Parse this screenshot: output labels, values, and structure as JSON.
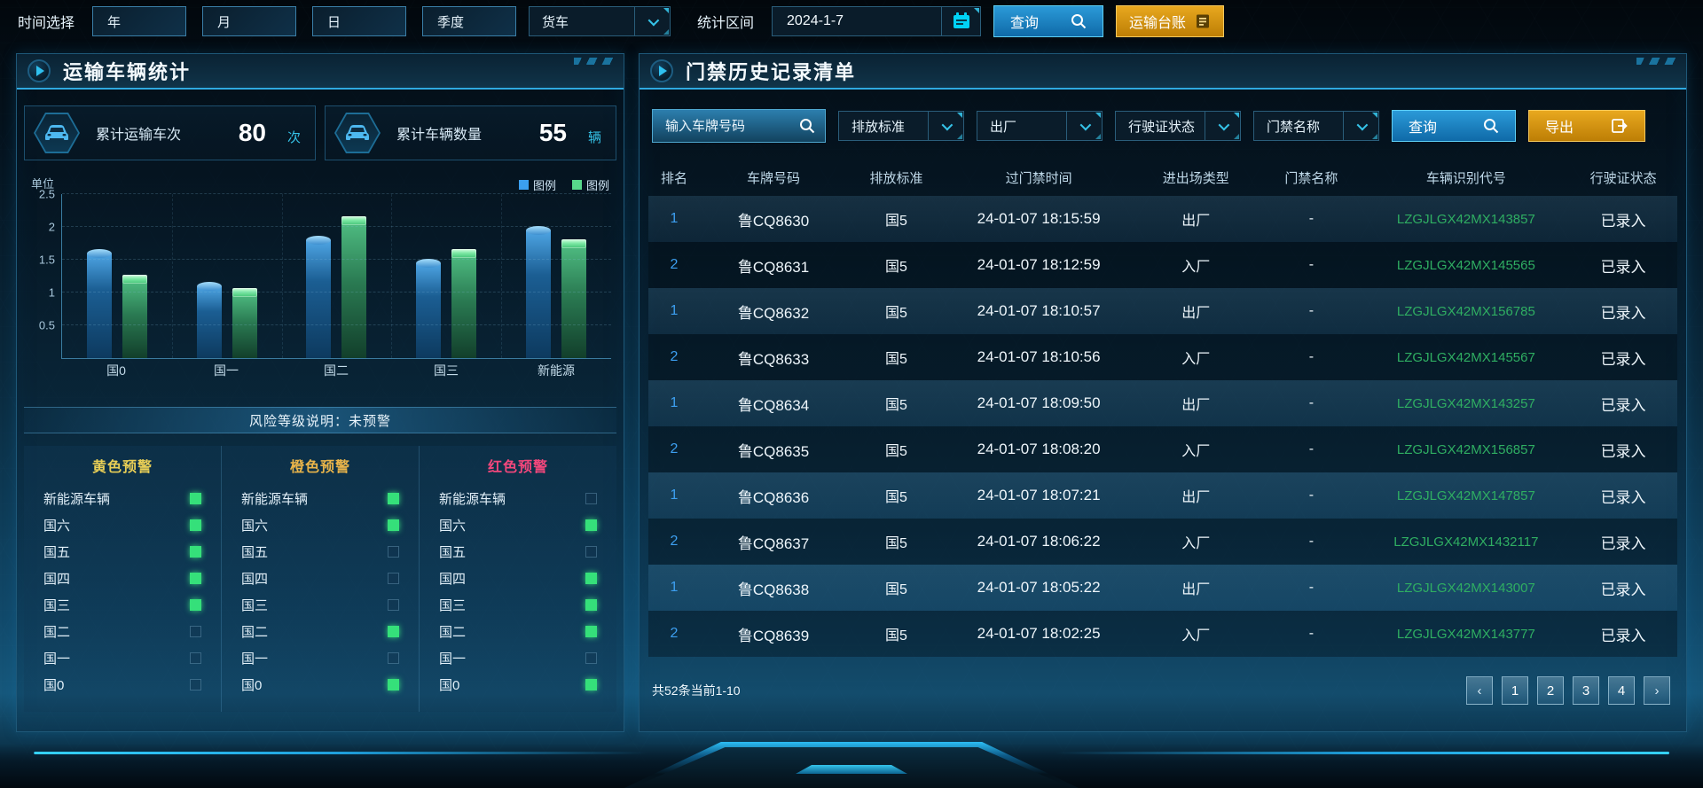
{
  "toolbar": {
    "time_label": "时间选择",
    "time_buttons": [
      "年",
      "月",
      "日",
      "季度"
    ],
    "vehicle_type": "货车",
    "range_label": "统计区间",
    "date_value": "2024-1-7",
    "query_label": "查询",
    "ledger_label": "运输台账"
  },
  "left_panel": {
    "title": "运输车辆统计",
    "stats": [
      {
        "icon": "car-icon",
        "label": "累计运输车次",
        "value": "80",
        "unit": "次"
      },
      {
        "icon": "car-icon",
        "label": "累计车辆数量",
        "value": "55",
        "unit": "辆"
      }
    ],
    "risk_note": "风险等级说明：未预警",
    "warning_columns": [
      {
        "title": "黄色预警",
        "title_color": "#e9cf56",
        "items": [
          {
            "label": "新能源车辆",
            "on": true
          },
          {
            "label": "国六",
            "on": true
          },
          {
            "label": "国五",
            "on": true
          },
          {
            "label": "国四",
            "on": true
          },
          {
            "label": "国三",
            "on": true
          },
          {
            "label": "国二",
            "on": false
          },
          {
            "label": "国一",
            "on": false
          },
          {
            "label": "国0",
            "on": false
          }
        ]
      },
      {
        "title": "橙色预警",
        "title_color": "#e9b44a",
        "items": [
          {
            "label": "新能源车辆",
            "on": true
          },
          {
            "label": "国六",
            "on": true
          },
          {
            "label": "国五",
            "on": false
          },
          {
            "label": "国四",
            "on": false
          },
          {
            "label": "国三",
            "on": false
          },
          {
            "label": "国二",
            "on": true
          },
          {
            "label": "国一",
            "on": false
          },
          {
            "label": "国0",
            "on": true
          }
        ]
      },
      {
        "title": "红色预警",
        "title_color": "#f4477c",
        "items": [
          {
            "label": "新能源车辆",
            "on": false
          },
          {
            "label": "国六",
            "on": true
          },
          {
            "label": "国五",
            "on": false
          },
          {
            "label": "国四",
            "on": true
          },
          {
            "label": "国三",
            "on": true
          },
          {
            "label": "国二",
            "on": true
          },
          {
            "label": "国一",
            "on": false
          },
          {
            "label": "国0",
            "on": true
          }
        ]
      }
    ]
  },
  "chart_data": {
    "type": "bar",
    "unit_label": "单位",
    "categories": [
      "国0",
      "国一",
      "国二",
      "国三",
      "新能源"
    ],
    "series": [
      {
        "name": "图例",
        "color": "#3b9ff0",
        "values": [
          1.6,
          1.1,
          1.8,
          1.45,
          1.95
        ]
      },
      {
        "name": "图例",
        "color": "#57d98b",
        "values": [
          1.2,
          1.0,
          2.1,
          1.6,
          1.75
        ]
      }
    ],
    "ylim": [
      0,
      2.5
    ],
    "yticks": [
      0.5,
      1,
      1.5,
      2,
      2.5
    ],
    "grid": true,
    "legend_position": "top-right"
  },
  "right_panel": {
    "title": "门禁历史记录清单",
    "filters": {
      "plate_placeholder": "输入车牌号码",
      "selects": [
        "排放标准",
        "出厂",
        "行驶证状态",
        "门禁名称"
      ],
      "query_label": "查询",
      "export_label": "导出"
    },
    "table": {
      "headers": [
        "排名",
        "车牌号码",
        "排放标准",
        "过门禁时间",
        "进出场类型",
        "门禁名称",
        "车辆识别代号",
        "行驶证状态"
      ],
      "rows": [
        [
          "1",
          "鲁CQ8630",
          "国5",
          "24-01-07 18:15:59",
          "出厂",
          "-",
          "LZGJLGX42MX143857",
          "已录入"
        ],
        [
          "2",
          "鲁CQ8631",
          "国5",
          "24-01-07 18:12:59",
          "入厂",
          "-",
          "LZGJLGX42MX145565",
          "已录入"
        ],
        [
          "1",
          "鲁CQ8632",
          "国5",
          "24-01-07 18:10:57",
          "出厂",
          "-",
          "LZGJLGX42MX156785",
          "已录入"
        ],
        [
          "2",
          "鲁CQ8633",
          "国5",
          "24-01-07 18:10:56",
          "入厂",
          "-",
          "LZGJLGX42MX145567",
          "已录入"
        ],
        [
          "1",
          "鲁CQ8634",
          "国5",
          "24-01-07 18:09:50",
          "出厂",
          "-",
          "LZGJLGX42MX143257",
          "已录入"
        ],
        [
          "2",
          "鲁CQ8635",
          "国5",
          "24-01-07 18:08:20",
          "入厂",
          "-",
          "LZGJLGX42MX156857",
          "已录入"
        ],
        [
          "1",
          "鲁CQ8636",
          "国5",
          "24-01-07 18:07:21",
          "出厂",
          "-",
          "LZGJLGX42MX147857",
          "已录入"
        ],
        [
          "2",
          "鲁CQ8637",
          "国5",
          "24-01-07 18:06:22",
          "入厂",
          "-",
          "LZGJLGX42MX1432117",
          "已录入"
        ],
        [
          "1",
          "鲁CQ8638",
          "国5",
          "24-01-07 18:05:22",
          "出厂",
          "-",
          "LZGJLGX42MX143007",
          "已录入"
        ],
        [
          "2",
          "鲁CQ8639",
          "国5",
          "24-01-07 18:02:25",
          "入厂",
          "-",
          "LZGJLGX42MX143777",
          "已录入"
        ]
      ]
    },
    "pagination": {
      "summary": "共52条当前1-10",
      "prev": "‹",
      "pages": [
        "1",
        "2",
        "3",
        "4"
      ],
      "next": "›"
    }
  },
  "colors": {
    "accent_cyan": "#2fc0ef",
    "query_blue": "#1787c8",
    "gold": "#d9951a",
    "vin_green": "#2fae62",
    "rank_blue": "#3d9ff0"
  }
}
